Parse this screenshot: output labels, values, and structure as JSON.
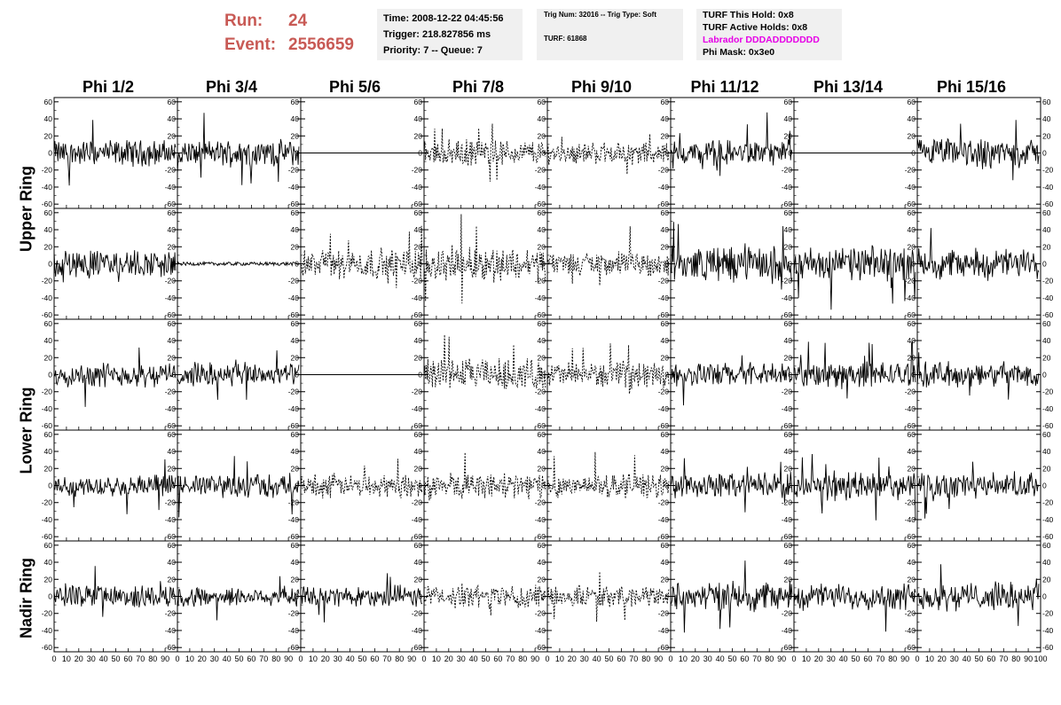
{
  "header": {
    "run_label": "Run:",
    "run_value": "24",
    "event_label": "Event:",
    "event_value": "2556659"
  },
  "time_box": {
    "time": "Time: 2008-12-22 04:45:56",
    "trigger": "Trigger: 218.827856 ms",
    "priority": "Priority: 7 -- Queue: 7"
  },
  "trig_box": {
    "trig": "Trig Num: 32016 -- Trig Type: Soft",
    "turf": "TURF: 61868"
  },
  "turf_box": {
    "this_hold": "TURF This Hold: 0x8",
    "active_holds": "TURF Active Holds: 0x8",
    "labrador": "Labrador DDDADDDDDDD",
    "phi_mask": "Phi Mask: 0x3e0"
  },
  "colors": {
    "accent": "#c85a55",
    "info_bg": "#f0f0f0",
    "labrador": "#e600e6",
    "trace": "#000000"
  },
  "chart_data": {
    "type": "line",
    "columns": [
      "Phi 1/2",
      "Phi 3/4",
      "Phi 5/6",
      "Phi 7/8",
      "Phi 9/10",
      "Phi 11/12",
      "Phi 13/14",
      "Phi 15/16"
    ],
    "rows": [
      "Upper Ring",
      "Upper Ring",
      "Lower Ring",
      "Lower Ring",
      "Nadir Ring"
    ],
    "row_labels": [
      {
        "label": "Upper Ring",
        "rows": [
          0,
          1
        ]
      },
      {
        "label": "Lower Ring",
        "rows": [
          2,
          3
        ]
      },
      {
        "label": "Nadir Ring",
        "rows": [
          4
        ]
      }
    ],
    "xlim": [
      0,
      100
    ],
    "ylim": [
      -65,
      65
    ],
    "x_ticks": [
      0,
      10,
      20,
      30,
      40,
      50,
      60,
      70,
      80,
      90
    ],
    "x_ticks_last": [
      0,
      10,
      20,
      30,
      40,
      50,
      60,
      70,
      80,
      90,
      100
    ],
    "y_ticks": [
      -60,
      -40,
      -20,
      0,
      20,
      40,
      60
    ],
    "y_tick_labels": [
      "-60",
      "-40",
      "-20",
      "0",
      "20",
      "40",
      "60"
    ],
    "styles": [
      [
        "solid",
        "solid",
        "flat",
        "dashed",
        "dashed",
        "solid",
        "flat",
        "solid"
      ],
      [
        "solid",
        "flat-noise",
        "dashed",
        "dashed",
        "dashed",
        "solid",
        "solid",
        "solid"
      ],
      [
        "solid",
        "solid",
        "flat",
        "dashed",
        "dashed",
        "solid",
        "solid",
        "solid"
      ],
      [
        "solid",
        "solid",
        "dashed",
        "dashed",
        "dashed",
        "solid",
        "solid",
        "solid"
      ],
      [
        "solid",
        "solid",
        "solid",
        "dashed",
        "dashed",
        "solid",
        "solid",
        "solid"
      ]
    ],
    "amplitude": [
      [
        12,
        12,
        0,
        12,
        10,
        12,
        0,
        14
      ],
      [
        13,
        2,
        14,
        16,
        12,
        16,
        16,
        14
      ],
      [
        11,
        11,
        0,
        15,
        12,
        11,
        12,
        12
      ],
      [
        10,
        11,
        11,
        12,
        11,
        12,
        13,
        12
      ],
      [
        11,
        9,
        10,
        11,
        10,
        14,
        12,
        13
      ]
    ],
    "grid": false,
    "legend": "none"
  }
}
